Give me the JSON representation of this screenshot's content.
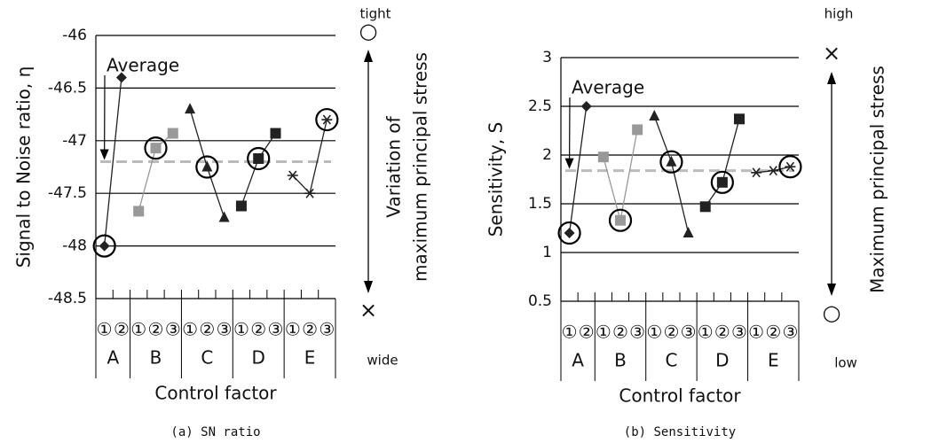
{
  "chart_data": [
    {
      "type": "line",
      "ylabel": "Signal to Noise  ratio, η",
      "xlabel": "Control factor",
      "caption": "(a)  SN ratio",
      "categories": [
        "①",
        "②",
        "①",
        "②",
        "③",
        "①",
        "②",
        "③",
        "①",
        "②",
        "③",
        "①",
        "②",
        "③"
      ],
      "ylim": [
        -48.5,
        -46
      ],
      "yticks": [
        -48.5,
        -48,
        -47.5,
        -47,
        -46.5,
        -46
      ],
      "grid": true,
      "series": [
        {
          "name": "A",
          "color": "#222222",
          "marker": "diamond",
          "values": [
            -48.0,
            -46.4,
            null,
            null,
            null,
            null,
            null,
            null,
            null,
            null,
            null,
            null,
            null,
            null
          ],
          "circled": [
            true,
            false,
            false,
            false,
            false,
            false,
            false,
            false,
            false,
            false,
            false,
            false,
            false,
            false
          ]
        },
        {
          "name": "B",
          "color": "#999999",
          "marker": "square",
          "values": [
            null,
            null,
            -47.67,
            -47.07,
            -46.93,
            null,
            null,
            null,
            null,
            null,
            null,
            null,
            null,
            null
          ],
          "circled": [
            false,
            false,
            false,
            true,
            false,
            false,
            false,
            false,
            false,
            false,
            false,
            false,
            false,
            false
          ]
        },
        {
          "name": "C",
          "color": "#222222",
          "marker": "triangle",
          "values": [
            null,
            null,
            null,
            null,
            null,
            -46.7,
            -47.25,
            -47.73,
            null,
            null,
            null,
            null,
            null,
            null
          ],
          "circled": [
            false,
            false,
            false,
            false,
            false,
            false,
            true,
            false,
            false,
            false,
            false,
            false,
            false,
            false
          ]
        },
        {
          "name": "D",
          "color": "#222222",
          "marker": "square",
          "values": [
            null,
            null,
            null,
            null,
            null,
            null,
            null,
            null,
            -47.62,
            -47.17,
            -46.93,
            null,
            null,
            null
          ],
          "circled": [
            false,
            false,
            false,
            false,
            false,
            false,
            false,
            false,
            false,
            true,
            false,
            false,
            false,
            false
          ]
        },
        {
          "name": "E",
          "color": "#222222",
          "marker": "star",
          "values": [
            null,
            null,
            null,
            null,
            null,
            null,
            null,
            null,
            null,
            null,
            null,
            -47.33,
            -47.5,
            -46.8
          ],
          "circled": [
            false,
            false,
            false,
            false,
            false,
            false,
            false,
            false,
            false,
            false,
            false,
            false,
            false,
            true
          ]
        }
      ],
      "average": {
        "label": "Average",
        "value": -47.2,
        "color": "#bbbbbb"
      },
      "right_annotation": {
        "top": "tight",
        "bottom": "wide",
        "top_symbol": "○",
        "bottom_symbol": "×",
        "lines": [
          "Variation of",
          "maximum principal stress"
        ]
      }
    },
    {
      "type": "line",
      "ylabel": "Sensitivity, S",
      "xlabel": "Control factor",
      "caption": "(b)  Sensitivity",
      "categories": [
        "①",
        "②",
        "①",
        "②",
        "③",
        "①",
        "②",
        "③",
        "①",
        "②",
        "③",
        "①",
        "②",
        "③"
      ],
      "ylim": [
        0.5,
        3
      ],
      "yticks": [
        0.5,
        1,
        1.5,
        2,
        2.5,
        3
      ],
      "grid": true,
      "series": [
        {
          "name": "A",
          "color": "#222222",
          "marker": "diamond",
          "values": [
            1.2,
            2.5,
            null,
            null,
            null,
            null,
            null,
            null,
            null,
            null,
            null,
            null,
            null,
            null
          ],
          "circled": [
            true,
            false,
            false,
            false,
            false,
            false,
            false,
            false,
            false,
            false,
            false,
            false,
            false,
            false
          ]
        },
        {
          "name": "B",
          "color": "#999999",
          "marker": "square",
          "values": [
            null,
            null,
            1.98,
            1.33,
            2.26,
            null,
            null,
            null,
            null,
            null,
            null,
            null,
            null,
            null
          ],
          "circled": [
            false,
            false,
            false,
            true,
            false,
            false,
            false,
            false,
            false,
            false,
            false,
            false,
            false,
            false
          ]
        },
        {
          "name": "C",
          "color": "#222222",
          "marker": "triangle",
          "values": [
            null,
            null,
            null,
            null,
            null,
            2.4,
            1.93,
            1.2,
            null,
            null,
            null,
            null,
            null,
            null
          ],
          "circled": [
            false,
            false,
            false,
            false,
            false,
            false,
            true,
            false,
            false,
            false,
            false,
            false,
            false,
            false
          ]
        },
        {
          "name": "D",
          "color": "#222222",
          "marker": "square",
          "values": [
            null,
            null,
            null,
            null,
            null,
            null,
            null,
            null,
            1.47,
            1.72,
            2.37,
            null,
            null,
            null
          ],
          "circled": [
            false,
            false,
            false,
            false,
            false,
            false,
            false,
            false,
            false,
            true,
            false,
            false,
            false,
            false
          ]
        },
        {
          "name": "E",
          "color": "#222222",
          "marker": "star",
          "values": [
            null,
            null,
            null,
            null,
            null,
            null,
            null,
            null,
            null,
            null,
            null,
            1.82,
            1.84,
            1.88
          ],
          "circled": [
            false,
            false,
            false,
            false,
            false,
            false,
            false,
            false,
            false,
            false,
            false,
            false,
            false,
            true
          ]
        }
      ],
      "average": {
        "label": "Average",
        "value": 1.84,
        "color": "#bbbbbb"
      },
      "right_annotation": {
        "top": "high",
        "bottom": "low",
        "top_symbol": "×",
        "bottom_symbol": "○",
        "lines": [
          "Maximum principal stress"
        ]
      }
    }
  ]
}
